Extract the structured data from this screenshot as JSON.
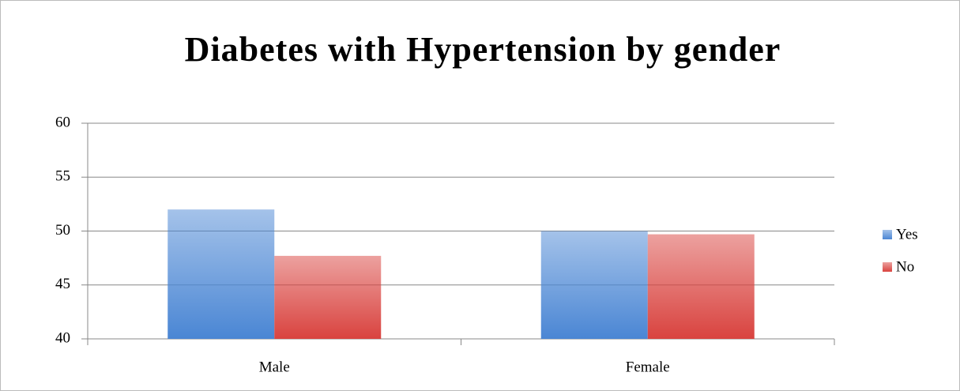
{
  "chart_data": {
    "type": "bar",
    "title": "Diabetes with Hypertension by gender",
    "categories": [
      "Male",
      "Female"
    ],
    "series": [
      {
        "name": "Yes",
        "color": "#4a86d4",
        "values": [
          52,
          50
        ]
      },
      {
        "name": "No",
        "color": "#d9433f",
        "values": [
          47.7,
          49.7
        ]
      }
    ],
    "ylim": [
      40,
      60
    ],
    "yticks": [
      40,
      45,
      50,
      55,
      60
    ],
    "grid": true,
    "legend": "right"
  }
}
